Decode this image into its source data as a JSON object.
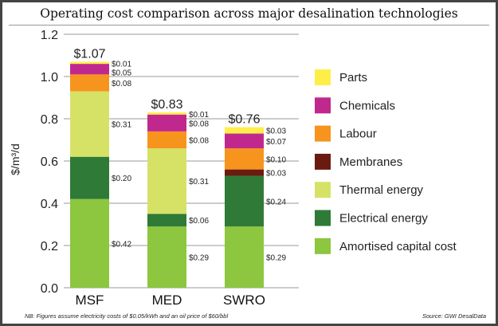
{
  "chart_data": {
    "type": "bar",
    "stacked": true,
    "title": "Operating cost comparison across major desalination technologies",
    "ylabel": "$/m³/d",
    "ylim": [
      0,
      1.2
    ],
    "yticks": [
      "0.0",
      "0.2",
      "0.4",
      "0.6",
      "0.8",
      "1.0",
      "1.2"
    ],
    "grid": true,
    "legend_placement": "right",
    "categories": [
      "MSF",
      "MED",
      "SWRO"
    ],
    "totals": [
      "$1.07",
      "$0.83",
      "$0.76"
    ],
    "series": [
      {
        "name": "Amortised capital cost",
        "color": "#8dc63f",
        "values": [
          0.42,
          0.29,
          0.29
        ]
      },
      {
        "name": "Electrical energy",
        "color": "#2f7a36",
        "values": [
          0.2,
          0.06,
          0.24
        ]
      },
      {
        "name": "Thermal energy",
        "color": "#d6e266",
        "values": [
          0.31,
          0.31,
          0
        ]
      },
      {
        "name": "Membranes",
        "color": "#6a1b10",
        "values": [
          0,
          0,
          0.03
        ]
      },
      {
        "name": "Labour",
        "color": "#f7941d",
        "values": [
          0.08,
          0.08,
          0.1
        ]
      },
      {
        "name": "Chemicals",
        "color": "#c0288e",
        "values": [
          0.05,
          0.08,
          0.07
        ]
      },
      {
        "name": "Parts",
        "color": "#ffee4a",
        "values": [
          0.01,
          0.01,
          0.03
        ]
      }
    ]
  },
  "footnote": "NB: Figures assume electricity costs of $0.05/kWh and an oil price of $60/bbl",
  "source": "Source: GWI DesalData"
}
